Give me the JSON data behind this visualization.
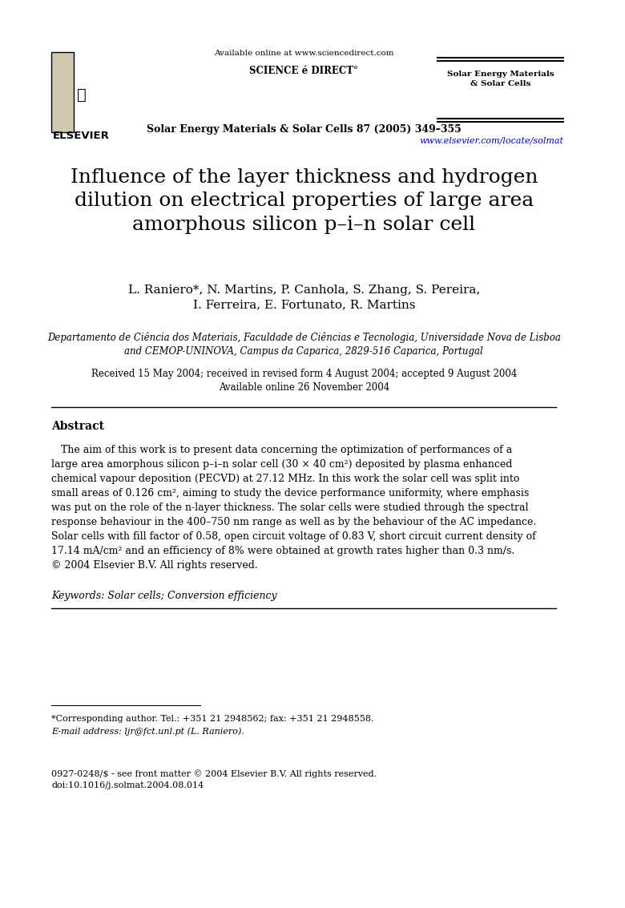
{
  "page_width": 7.8,
  "page_height": 11.33,
  "background_color": "#ffffff",
  "header": {
    "available_online": "Available online at www.sciencedirect.com",
    "sciencedirect_logo": "SCIENCE é DIRECT°",
    "journal_name_right": "Solar Energy Materials\n& Solar Cells",
    "journal_citation": "Solar Energy Materials & Solar Cells 87 (2005) 349–355",
    "url": "www.elsevier.com/locate/solmat"
  },
  "title": "Influence of the layer thickness and hydrogen\ndilution on electrical properties of large area\namorphous silicon p–i–n solar cell",
  "authors": "L. Raniero*, N. Martins, P. Canhola, S. Zhang, S. Pereira,\nI. Ferreira, E. Fortunato, R. Martins",
  "affiliation": "Departamento de Ciência dos Materiais, Faculdade de Ciências e Tecnologia, Universidade Nova de Lisboa\nand CEMOP-UNINOVA, Campus da Caparica, 2829-516 Caparica, Portugal",
  "received": "Received 15 May 2004; received in revised form 4 August 2004; accepted 9 August 2004\nAvailable online 26 November 2004",
  "abstract_heading": "Abstract",
  "abstract_text": "   The aim of this work is to present data concerning the optimization of performances of a large area amorphous silicon p–i–n solar cell (30 × 40 cm²) deposited by plasma enhanced chemical vapour deposition (PECVD) at 27.12 MHz. In this work the solar cell was split into small areas of 0.126 cm², aiming to study the device performance uniformity, where emphasis was put on the role of the n-layer thickness. The solar cells were studied through the spectral response behaviour in the 400–750 nm range as well as by the behaviour of the AC impedance. Solar cells with fill factor of 0.58, open circuit voltage of 0.83 V, short circuit current density of 17.14 mA/cm² and an efficiency of 8% were obtained at growth rates higher than 0.3 nm/s.\n© 2004 Elsevier B.V. All rights reserved.",
  "keywords": "Keywords: Solar cells; Conversion efficiency",
  "footnote_separator": true,
  "footnote": "*Corresponding author. Tel.: +351 21 2948562; fax: +351 21 2948558.\nE-mail address: ljr@fct.unl.pt (L. Raniero).",
  "bottom_text": "0927-0248/$ - see front matter © 2004 Elsevier B.V. All rights reserved.\ndoi:10.1016/j.solmat.2004.08.014",
  "elsevier_logo_text": "ELSEVIER"
}
